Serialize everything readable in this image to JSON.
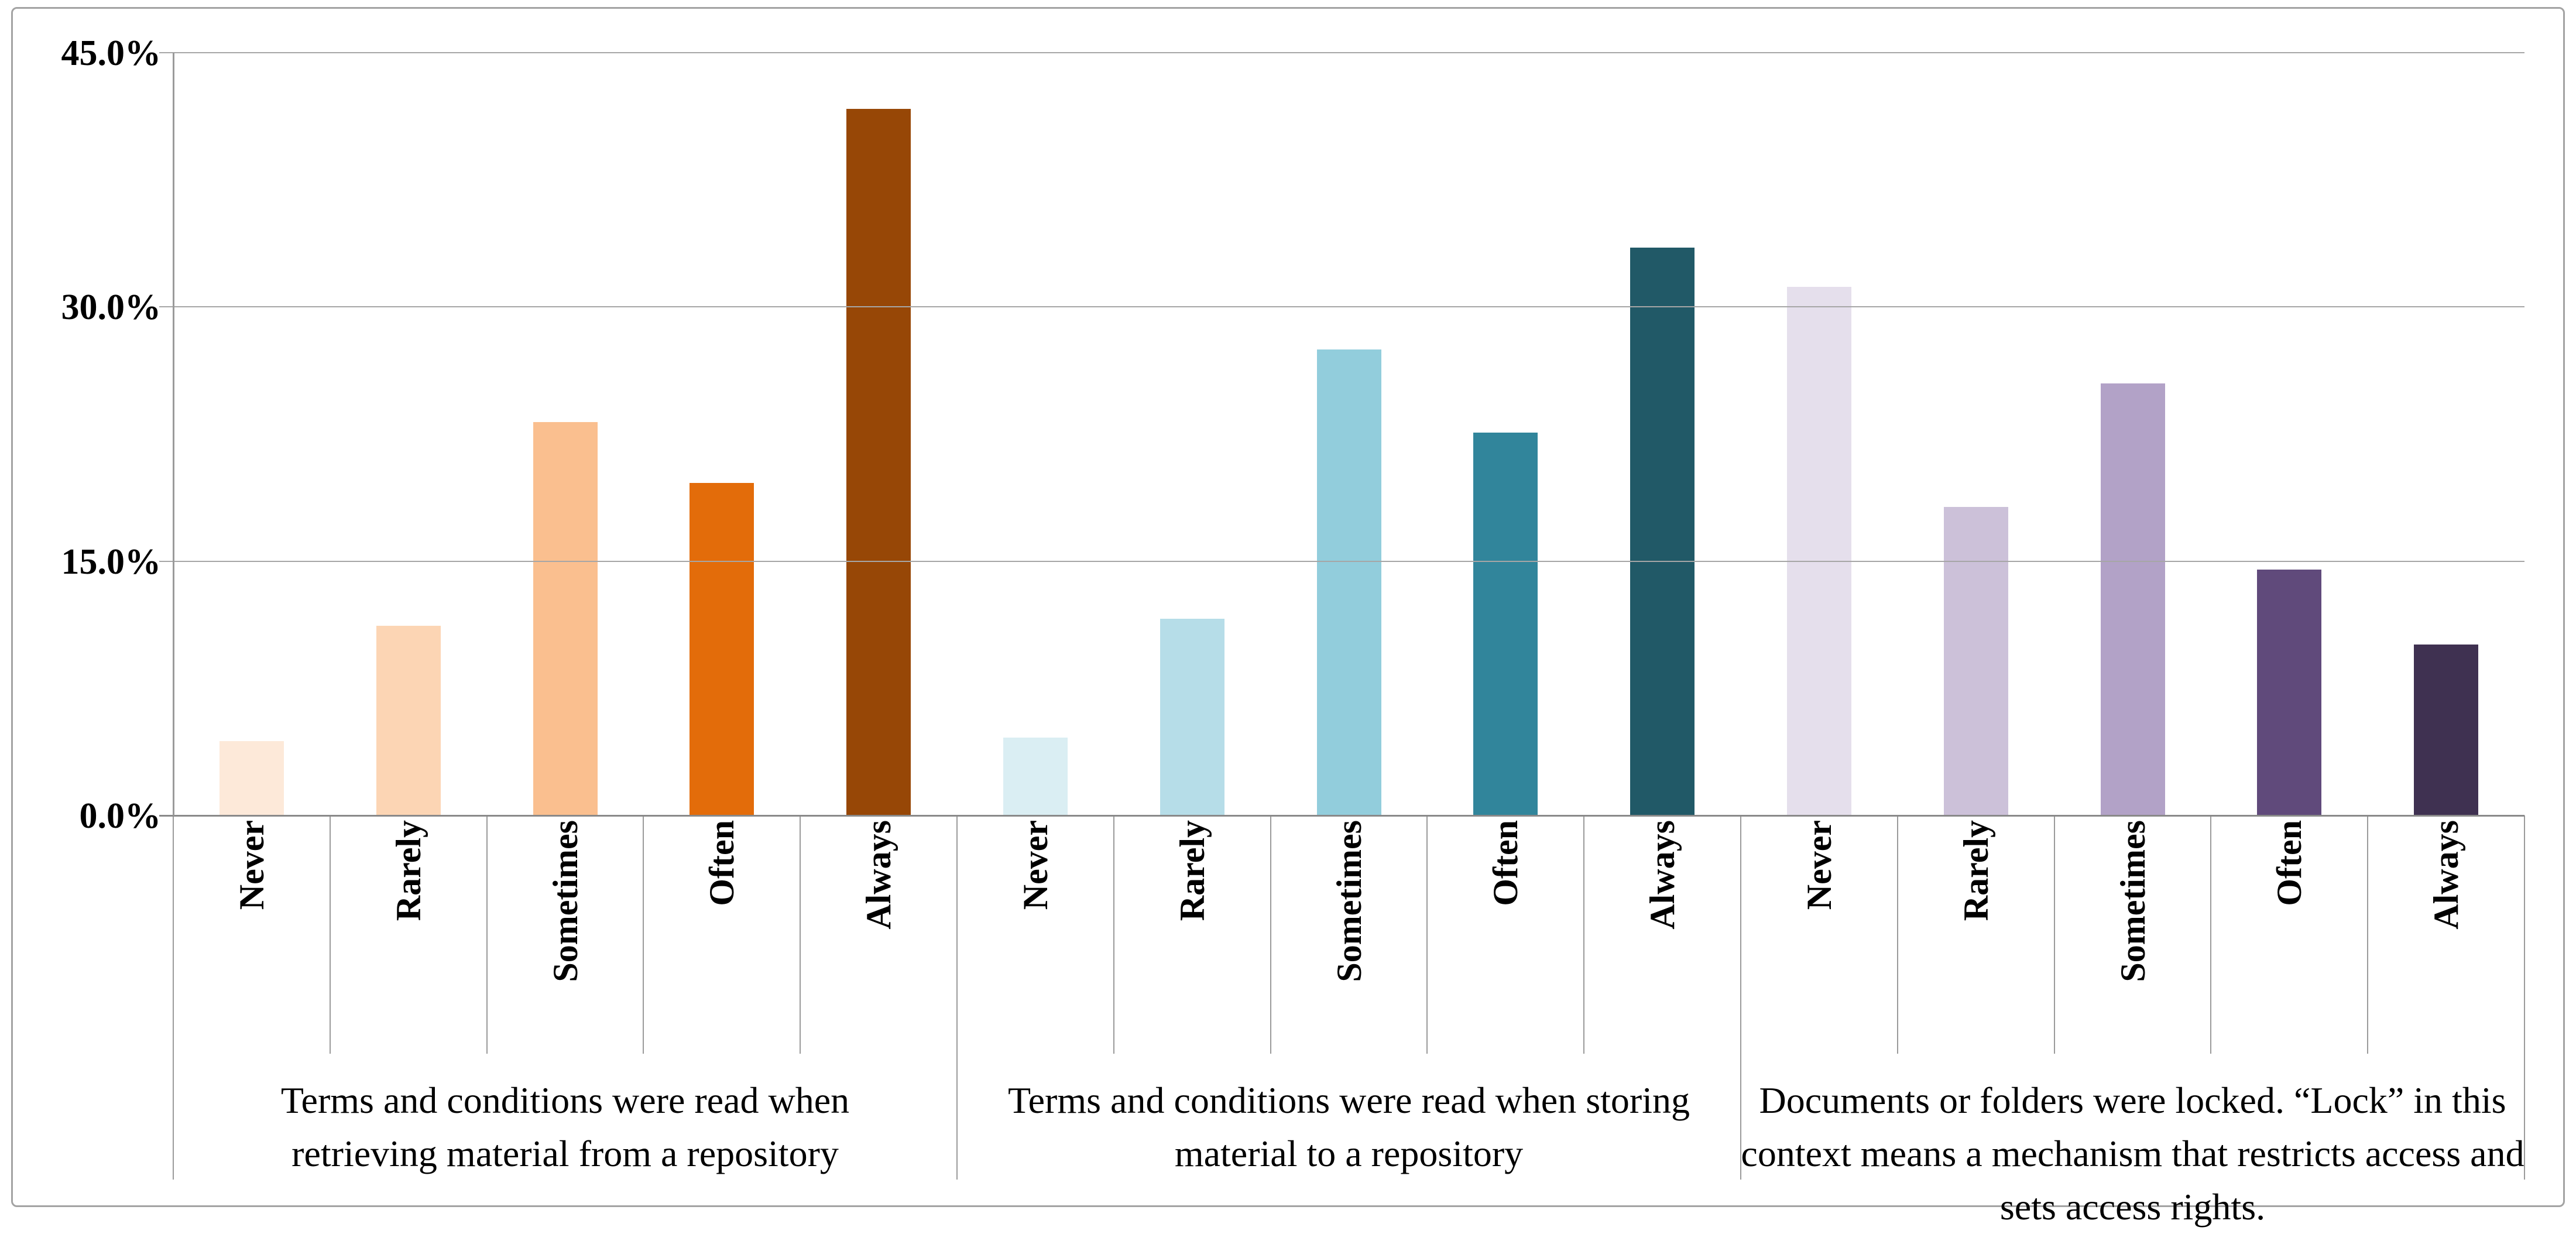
{
  "chart_data": {
    "type": "bar",
    "title": "",
    "xlabel": "",
    "ylabel": "",
    "ylim": [
      0,
      45
    ],
    "y_tick_step": 15,
    "y_tick_labels": [
      "45.0%",
      "30.0%",
      "15.0%",
      "0.0%"
    ],
    "grid": true,
    "legend": false,
    "categories": [
      "Never",
      "Rarely",
      "Sometimes",
      "Often",
      "Always"
    ],
    "groups": [
      {
        "label": "Terms and conditions were read when retrieving material from a repository",
        "categories": [
          "Never",
          "Rarely",
          "Sometimes",
          "Often",
          "Always"
        ],
        "values": [
          4.4,
          11.2,
          23.2,
          19.6,
          41.7
        ],
        "colors": [
          "#FDE9D9",
          "#FCD5B4",
          "#FABF8F",
          "#E36C0A",
          "#974706"
        ]
      },
      {
        "label": "Terms and conditions were read when storing material to a repository",
        "categories": [
          "Never",
          "Rarely",
          "Sometimes",
          "Often",
          "Always"
        ],
        "values": [
          4.6,
          11.6,
          27.5,
          22.6,
          33.5
        ],
        "colors": [
          "#DAEEF3",
          "#B6DDE8",
          "#92CDDC",
          "#31859B",
          "#215967"
        ]
      },
      {
        "label": "Documents or folders were locked. “Lock” in this context means a mechanism that restricts access and sets access rights.",
        "categories": [
          "Never",
          "Rarely",
          "Sometimes",
          "Often",
          "Always"
        ],
        "values": [
          31.2,
          18.2,
          25.5,
          14.5,
          10.1
        ],
        "colors": [
          "#E5DFEC",
          "#CCC1D9",
          "#B2A2C7",
          "#604A7B",
          "#3F3151"
        ]
      }
    ],
    "colors_meta": {
      "gridline": "#a6a6a6",
      "axis_line": "#898989",
      "separator": "#9a9a9a",
      "frame_border": "#a3a3a3",
      "text": "#000000",
      "background": "#ffffff"
    }
  }
}
